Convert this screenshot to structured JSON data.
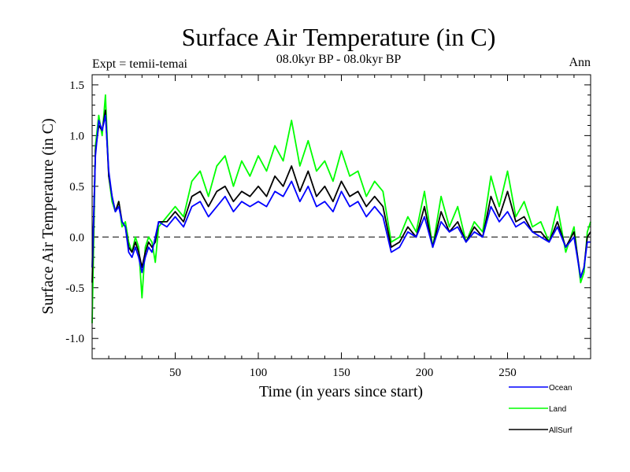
{
  "chart_data": {
    "type": "line",
    "title": "Surface Air Temperature (in C)",
    "subtitle": "08.0kyr BP - 08.0kyr BP",
    "expt_label": "Expt = temii-temai",
    "season_label": "Ann",
    "xlabel": "Time (in years since start)",
    "ylabel": "Surface Air Temperature (in C)",
    "xlim": [
      0,
      300
    ],
    "ylim": [
      -1.2,
      1.6
    ],
    "xticks": [
      50,
      100,
      150,
      200,
      250
    ],
    "xtick_labels": [
      "50",
      "100",
      "150",
      "200",
      "250"
    ],
    "yticks": [
      -1.0,
      -0.5,
      0.0,
      0.5,
      1.0,
      1.5
    ],
    "ytick_labels": [
      "-1.0",
      "-0.5",
      "0.0",
      "0.5",
      "1.0",
      "1.5"
    ],
    "reference_line": 0.0,
    "grid": false,
    "legend_position": "bottom-right",
    "series": [
      {
        "name": "Ocean",
        "color": "#0000ff",
        "x": [
          0,
          2,
          4,
          6,
          8,
          10,
          12,
          14,
          16,
          18,
          20,
          22,
          24,
          26,
          28,
          30,
          32,
          34,
          36,
          38,
          40,
          45,
          50,
          55,
          60,
          65,
          70,
          75,
          80,
          85,
          90,
          95,
          100,
          105,
          110,
          115,
          120,
          125,
          130,
          135,
          140,
          145,
          150,
          155,
          160,
          165,
          170,
          175,
          180,
          185,
          190,
          195,
          200,
          205,
          210,
          215,
          220,
          225,
          230,
          235,
          240,
          245,
          250,
          255,
          260,
          265,
          270,
          275,
          280,
          285,
          290,
          294,
          296,
          298,
          300
        ],
        "y": [
          -0.3,
          0.8,
          1.15,
          1.05,
          1.2,
          0.65,
          0.4,
          0.25,
          0.3,
          0.15,
          0.1,
          -0.15,
          -0.2,
          -0.1,
          -0.2,
          -0.35,
          -0.2,
          -0.1,
          -0.15,
          0.0,
          0.15,
          0.1,
          0.2,
          0.1,
          0.3,
          0.35,
          0.2,
          0.3,
          0.4,
          0.25,
          0.35,
          0.3,
          0.35,
          0.3,
          0.45,
          0.4,
          0.55,
          0.35,
          0.5,
          0.3,
          0.35,
          0.25,
          0.45,
          0.3,
          0.35,
          0.2,
          0.3,
          0.2,
          -0.15,
          -0.1,
          0.05,
          0.0,
          0.2,
          -0.1,
          0.15,
          0.05,
          0.1,
          -0.05,
          0.05,
          0.0,
          0.3,
          0.15,
          0.25,
          0.1,
          0.15,
          0.05,
          0.0,
          -0.05,
          0.1,
          -0.1,
          0.0,
          -0.4,
          -0.3,
          -0.05,
          -0.05
        ]
      },
      {
        "name": "Land",
        "color": "#00ff00",
        "x": [
          0,
          2,
          4,
          6,
          8,
          10,
          12,
          14,
          16,
          18,
          20,
          22,
          24,
          26,
          28,
          30,
          32,
          34,
          36,
          38,
          40,
          45,
          50,
          55,
          60,
          65,
          70,
          75,
          80,
          85,
          90,
          95,
          100,
          105,
          110,
          115,
          120,
          125,
          130,
          135,
          140,
          145,
          150,
          155,
          160,
          165,
          170,
          175,
          180,
          185,
          190,
          195,
          200,
          205,
          210,
          215,
          220,
          225,
          230,
          235,
          240,
          245,
          250,
          255,
          260,
          265,
          270,
          275,
          280,
          285,
          290,
          294,
          296,
          298,
          300
        ],
        "y": [
          -0.85,
          0.9,
          1.2,
          1.0,
          1.4,
          0.6,
          0.35,
          0.25,
          0.35,
          0.1,
          0.15,
          -0.05,
          -0.15,
          0.0,
          -0.1,
          -0.6,
          -0.1,
          0.0,
          -0.05,
          -0.25,
          0.1,
          0.2,
          0.3,
          0.2,
          0.55,
          0.65,
          0.4,
          0.7,
          0.8,
          0.5,
          0.75,
          0.6,
          0.8,
          0.65,
          0.9,
          0.75,
          1.15,
          0.7,
          0.95,
          0.65,
          0.75,
          0.55,
          0.85,
          0.6,
          0.65,
          0.4,
          0.55,
          0.45,
          -0.05,
          0.0,
          0.2,
          0.05,
          0.45,
          -0.1,
          0.4,
          0.1,
          0.3,
          -0.05,
          0.15,
          0.05,
          0.6,
          0.3,
          0.65,
          0.2,
          0.35,
          0.1,
          0.15,
          -0.05,
          0.3,
          -0.15,
          0.1,
          -0.45,
          -0.35,
          0.05,
          0.15
        ]
      },
      {
        "name": "AllSurf",
        "color": "#000000",
        "x": [
          0,
          2,
          4,
          6,
          8,
          10,
          12,
          14,
          16,
          18,
          20,
          22,
          24,
          26,
          28,
          30,
          32,
          34,
          36,
          38,
          40,
          45,
          50,
          55,
          60,
          65,
          70,
          75,
          80,
          85,
          90,
          95,
          100,
          105,
          110,
          115,
          120,
          125,
          130,
          135,
          140,
          145,
          150,
          155,
          160,
          165,
          170,
          175,
          180,
          185,
          190,
          195,
          200,
          205,
          210,
          215,
          220,
          225,
          230,
          235,
          240,
          245,
          250,
          255,
          260,
          265,
          270,
          275,
          280,
          285,
          290,
          294,
          296,
          298,
          300
        ],
        "y": [
          -0.45,
          0.85,
          1.1,
          1.05,
          1.25,
          0.6,
          0.4,
          0.25,
          0.35,
          0.15,
          0.1,
          -0.1,
          -0.15,
          -0.05,
          -0.15,
          -0.3,
          -0.15,
          -0.05,
          -0.1,
          -0.05,
          0.15,
          0.15,
          0.25,
          0.15,
          0.4,
          0.45,
          0.3,
          0.45,
          0.5,
          0.35,
          0.45,
          0.4,
          0.5,
          0.4,
          0.6,
          0.5,
          0.7,
          0.45,
          0.65,
          0.4,
          0.5,
          0.35,
          0.55,
          0.4,
          0.45,
          0.3,
          0.4,
          0.3,
          -0.1,
          -0.05,
          0.1,
          0.0,
          0.3,
          -0.1,
          0.25,
          0.05,
          0.15,
          -0.05,
          0.1,
          0.0,
          0.4,
          0.2,
          0.45,
          0.15,
          0.2,
          0.05,
          0.05,
          -0.05,
          0.15,
          -0.1,
          0.05,
          -0.4,
          -0.3,
          0.0,
          0.05
        ]
      }
    ]
  }
}
